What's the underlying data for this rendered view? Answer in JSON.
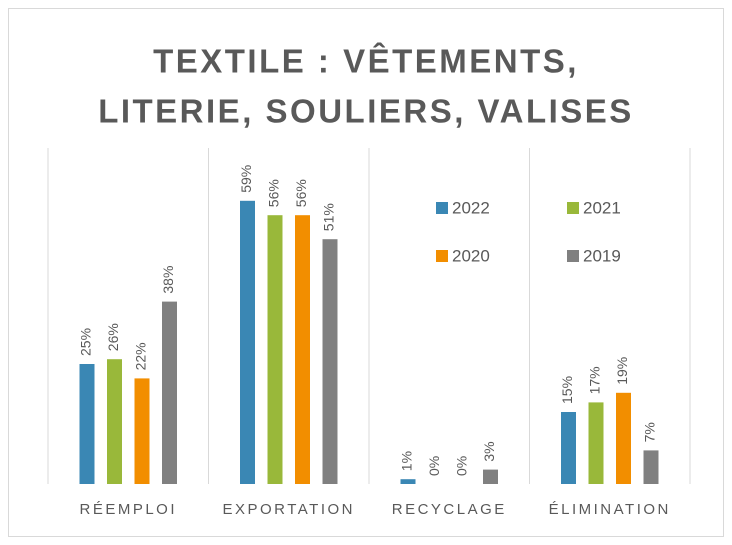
{
  "chart_data": {
    "type": "bar",
    "title": [
      "TEXTILE : VÊTEMENTS,",
      "LITERIE, SOULIERS, VALISES"
    ],
    "categories": [
      "RÉEMPLOI",
      "EXPORTATION",
      "RECYCLAGE",
      "ÉLIMINATION"
    ],
    "series": [
      {
        "name": "2022",
        "color": "#3a87b4",
        "values": [
          25,
          59,
          1,
          15
        ],
        "value_labels": [
          "25%",
          "59%",
          "1%",
          "15%"
        ]
      },
      {
        "name": "2021",
        "color": "#99b83a",
        "values": [
          26,
          56,
          0,
          17
        ],
        "value_labels": [
          "26%",
          "56%",
          "0%",
          "17%"
        ]
      },
      {
        "name": "2020",
        "color": "#f28e00",
        "values": [
          22,
          56,
          0,
          19
        ],
        "value_labels": [
          "22%",
          "56%",
          "0%",
          "19%"
        ]
      },
      {
        "name": "2019",
        "color": "#808080",
        "values": [
          38,
          51,
          3,
          7
        ],
        "value_labels": [
          "38%",
          "51%",
          "3%",
          "7%"
        ]
      }
    ],
    "ylim": [
      0,
      70
    ],
    "legend": "upper right"
  }
}
